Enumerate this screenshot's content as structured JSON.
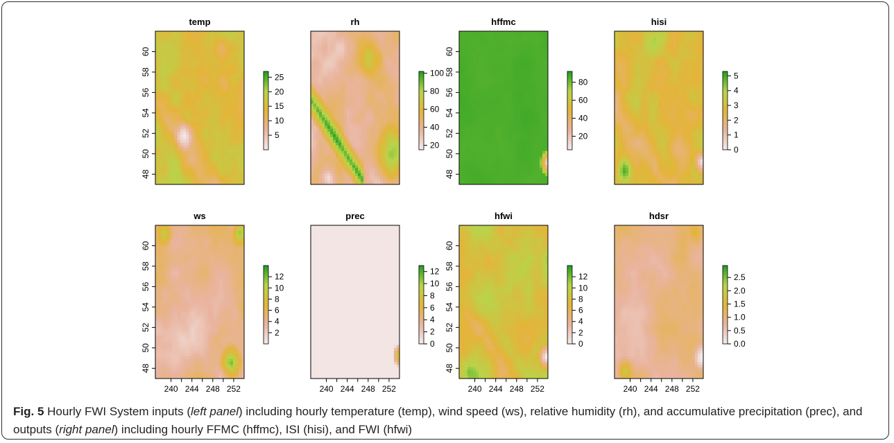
{
  "colors": {
    "palette_low": "#f3ecec",
    "palette_midlow": "#e9b49f",
    "palette_mid": "#e4b43a",
    "palette_midhigh": "#b8d44a",
    "palette_high": "#1f9e1f"
  },
  "caption": {
    "label": "Fig. 5",
    "part1": " Hourly FWI System inputs (",
    "left_panel": "left panel",
    "part2": ") including hourly temperature (temp), wind speed (ws), relative humidity (rh), and accumulative precipitation (prec), and outputs (",
    "right_panel": "right panel",
    "part3": ") including hourly FFMC (hffmc), ISI (hisi), and FWI (hfwi)"
  },
  "chart_data": [
    {
      "type": "heatmap",
      "title": "temp",
      "xlim": [
        237,
        254
      ],
      "ylim": [
        47,
        62
      ],
      "yticks": [
        "48",
        "50",
        "52",
        "54",
        "56",
        "58",
        "60"
      ],
      "xticks": [],
      "legend_range": [
        0,
        27
      ],
      "legend_ticks": [
        "5",
        "10",
        "15",
        "20",
        "25"
      ],
      "pattern": "temp"
    },
    {
      "type": "heatmap",
      "title": "rh",
      "xlim": [
        237,
        254
      ],
      "ylim": [
        47,
        62
      ],
      "yticks": [],
      "xticks": [],
      "legend_range": [
        15,
        102
      ],
      "legend_ticks": [
        "20",
        "40",
        "60",
        "80",
        "100"
      ],
      "pattern": "rh"
    },
    {
      "type": "heatmap",
      "title": "hffmc",
      "xlim": [
        237,
        254
      ],
      "ylim": [
        47,
        62
      ],
      "yticks": [
        "48",
        "50",
        "52",
        "54",
        "56",
        "58",
        "60"
      ],
      "xticks": [],
      "legend_range": [
        5,
        92
      ],
      "legend_ticks": [
        "20",
        "40",
        "60",
        "80"
      ],
      "pattern": "hffmc"
    },
    {
      "type": "heatmap",
      "title": "hisi",
      "xlim": [
        237,
        254
      ],
      "ylim": [
        47,
        62
      ],
      "yticks": [],
      "xticks": [],
      "legend_range": [
        0,
        5.3
      ],
      "legend_ticks": [
        "0",
        "1",
        "2",
        "3",
        "4",
        "5"
      ],
      "pattern": "hisi"
    },
    {
      "type": "heatmap",
      "title": "ws",
      "xlim": [
        237,
        254
      ],
      "ylim": [
        47,
        62
      ],
      "yticks": [
        "48",
        "50",
        "52",
        "54",
        "56",
        "58",
        "60"
      ],
      "xticks": [
        "240",
        "244",
        "248",
        "252"
      ],
      "legend_range": [
        0,
        14
      ],
      "legend_ticks": [
        "2",
        "4",
        "6",
        "8",
        "10",
        "12"
      ],
      "pattern": "ws"
    },
    {
      "type": "heatmap",
      "title": "prec",
      "xlim": [
        237,
        254
      ],
      "ylim": [
        47,
        62
      ],
      "yticks": [],
      "xticks": [
        "240",
        "244",
        "248",
        "252"
      ],
      "legend_range": [
        0,
        13
      ],
      "legend_ticks": [
        "0",
        "2",
        "4",
        "6",
        "8",
        "10",
        "12"
      ],
      "pattern": "prec"
    },
    {
      "type": "heatmap",
      "title": "hfwi",
      "xlim": [
        237,
        254
      ],
      "ylim": [
        47,
        62
      ],
      "yticks": [
        "48",
        "50",
        "52",
        "54",
        "56",
        "58",
        "60"
      ],
      "xticks": [
        "240",
        "244",
        "248",
        "252"
      ],
      "legend_range": [
        0,
        14
      ],
      "legend_ticks": [
        "0",
        "2",
        "4",
        "6",
        "8",
        "10",
        "12"
      ],
      "pattern": "hfwi"
    },
    {
      "type": "heatmap",
      "title": "hdsr",
      "xlim": [
        237,
        254
      ],
      "ylim": [
        47,
        62
      ],
      "yticks": [],
      "xticks": [
        "240",
        "244",
        "248",
        "252"
      ],
      "legend_range": [
        0,
        2.95
      ],
      "legend_ticks": [
        "0.0",
        "0.5",
        "1.0",
        "1.5",
        "2.0",
        "2.5"
      ],
      "pattern": "hdsr"
    }
  ]
}
